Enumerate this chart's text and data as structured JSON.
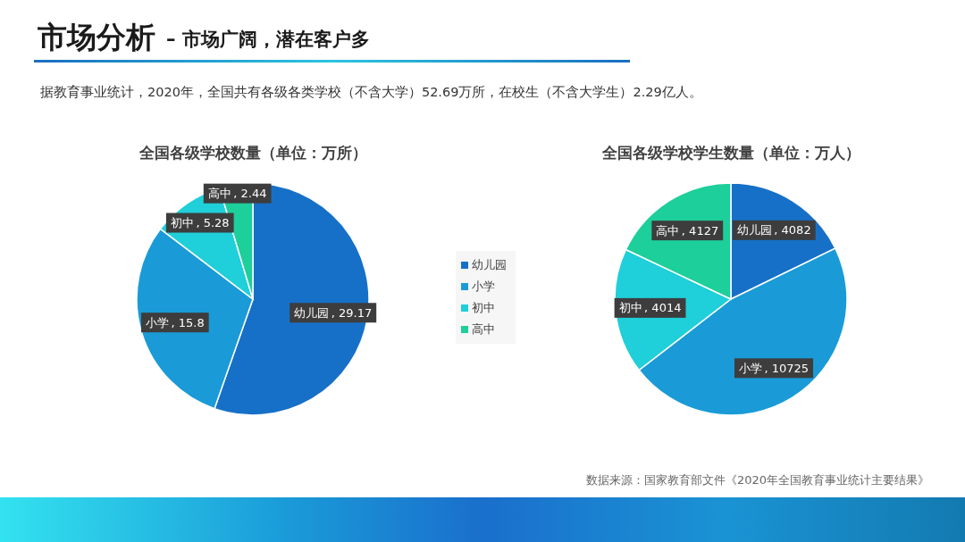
{
  "chart_data": [
    {
      "type": "pie",
      "title": "全国各级学校数量（单位：万所）",
      "categories": [
        "幼儿园",
        "小学",
        "初中",
        "高中"
      ],
      "values": [
        29.17,
        15.8,
        5.28,
        2.44
      ],
      "value_labels": [
        ", 29.17",
        ", 15.8",
        ", 5.28",
        ", 2.44"
      ],
      "colors": [
        "#1770c7",
        "#1a9bd7",
        "#1fcfd9",
        "#1dcf9a"
      ],
      "legend": "right",
      "annotations": [
        "市场分析",
        "– 市场广阔，潜在客户多",
        "据教育事业统计，2020年，全国共有各级各类学校（不含大学）52.69万所，在校生（不含大学生）2.29亿人。"
      ]
    },
    {
      "type": "pie",
      "title": "全国各级学校学生数量（单位：万人）",
      "categories": [
        "幼儿园",
        "小学",
        "初中",
        "高中"
      ],
      "values": [
        4082,
        10725,
        4014,
        4127
      ],
      "value_labels": [
        ", 4082",
        ", 10725",
        ", 4014",
        ", 4127"
      ],
      "colors": [
        "#1770c7",
        "#1a9bd7",
        "#1fcfd9",
        "#1dcf9a"
      ],
      "annotations": [
        "数据来源：国家教育部文件《2020年全国教育事业统计主要结果》"
      ]
    }
  ]
}
